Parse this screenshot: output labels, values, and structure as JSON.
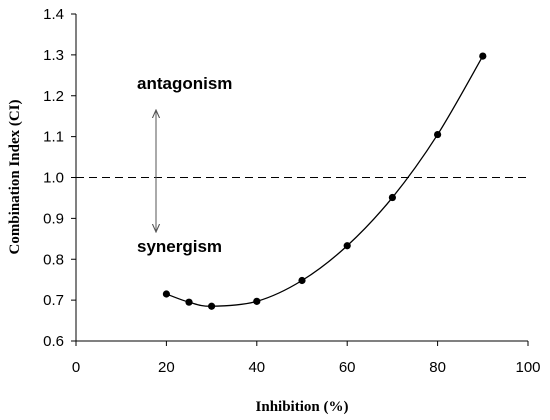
{
  "chart_data": {
    "type": "line",
    "xlabel": "Inhibition (%)",
    "ylabel": "Combination Index (CI)",
    "xlim": [
      0,
      100
    ],
    "ylim": [
      0.6,
      1.4
    ],
    "x_ticks": [
      0,
      20,
      40,
      60,
      80,
      100
    ],
    "y_ticks": [
      0.6,
      0.7,
      0.8,
      0.9,
      1.0,
      1.1,
      1.2,
      1.3,
      1.4
    ],
    "x_tick_labels": [
      "0",
      "20",
      "40",
      "60",
      "80",
      "100"
    ],
    "y_tick_labels": [
      "0.6",
      "0.7",
      "0.8",
      "0.9",
      "1.0",
      "1.1",
      "1.2",
      "1.3",
      "1.4"
    ],
    "grid": false,
    "legend": "none",
    "series": [
      {
        "x": [
          20,
          25,
          30,
          40,
          50,
          60,
          70,
          80,
          90
        ],
        "y": [
          0.715,
          0.695,
          0.685,
          0.697,
          0.748,
          0.833,
          0.951,
          1.105,
          1.297
        ],
        "color": "#000000",
        "marker": "circle",
        "smooth": true
      }
    ],
    "reference_line": {
      "y": 1.0,
      "style": "dashed"
    },
    "annotations": {
      "top": "antagonism",
      "bottom": "synergism",
      "arrow": "double-headed vertical"
    }
  }
}
